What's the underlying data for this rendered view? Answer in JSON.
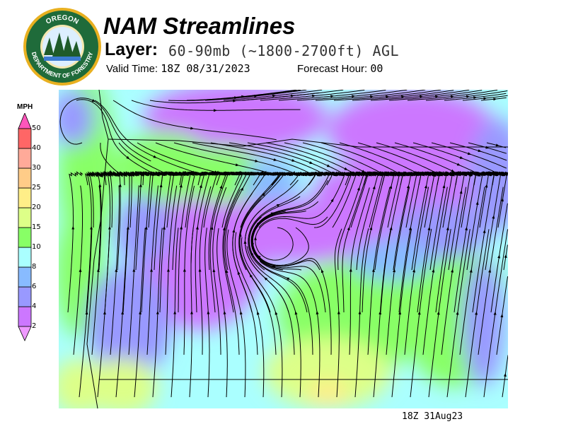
{
  "header": {
    "title": "NAM Streamlines",
    "layer_label": "Layer:",
    "layer_value": "60-90mb (~1800-2700ft) AGL",
    "valid_label": "Valid Time:",
    "valid_value": "18Z 08/31/2023",
    "forecast_label": "Forecast Hour:",
    "forecast_value": "00"
  },
  "logo": {
    "top_text": "OREGON",
    "bottom_text": "DEPARTMENT OF FORESTRY"
  },
  "legend": {
    "unit": "MPH",
    "levels": [
      "2",
      "4",
      "6",
      "8",
      "10",
      "15",
      "20",
      "25",
      "30",
      "40",
      "50"
    ],
    "colors": [
      "#cc77ff",
      "#9999ff",
      "#88bbff",
      "#aaffff",
      "#88ff66",
      "#ddff88",
      "#ffee88",
      "#ffcc88",
      "#ffaa99",
      "#ff6666"
    ],
    "under_color": "#ee99ff",
    "over_color": "#ff55bb"
  },
  "map": {
    "timestamp": "18Z 31Aug23"
  }
}
